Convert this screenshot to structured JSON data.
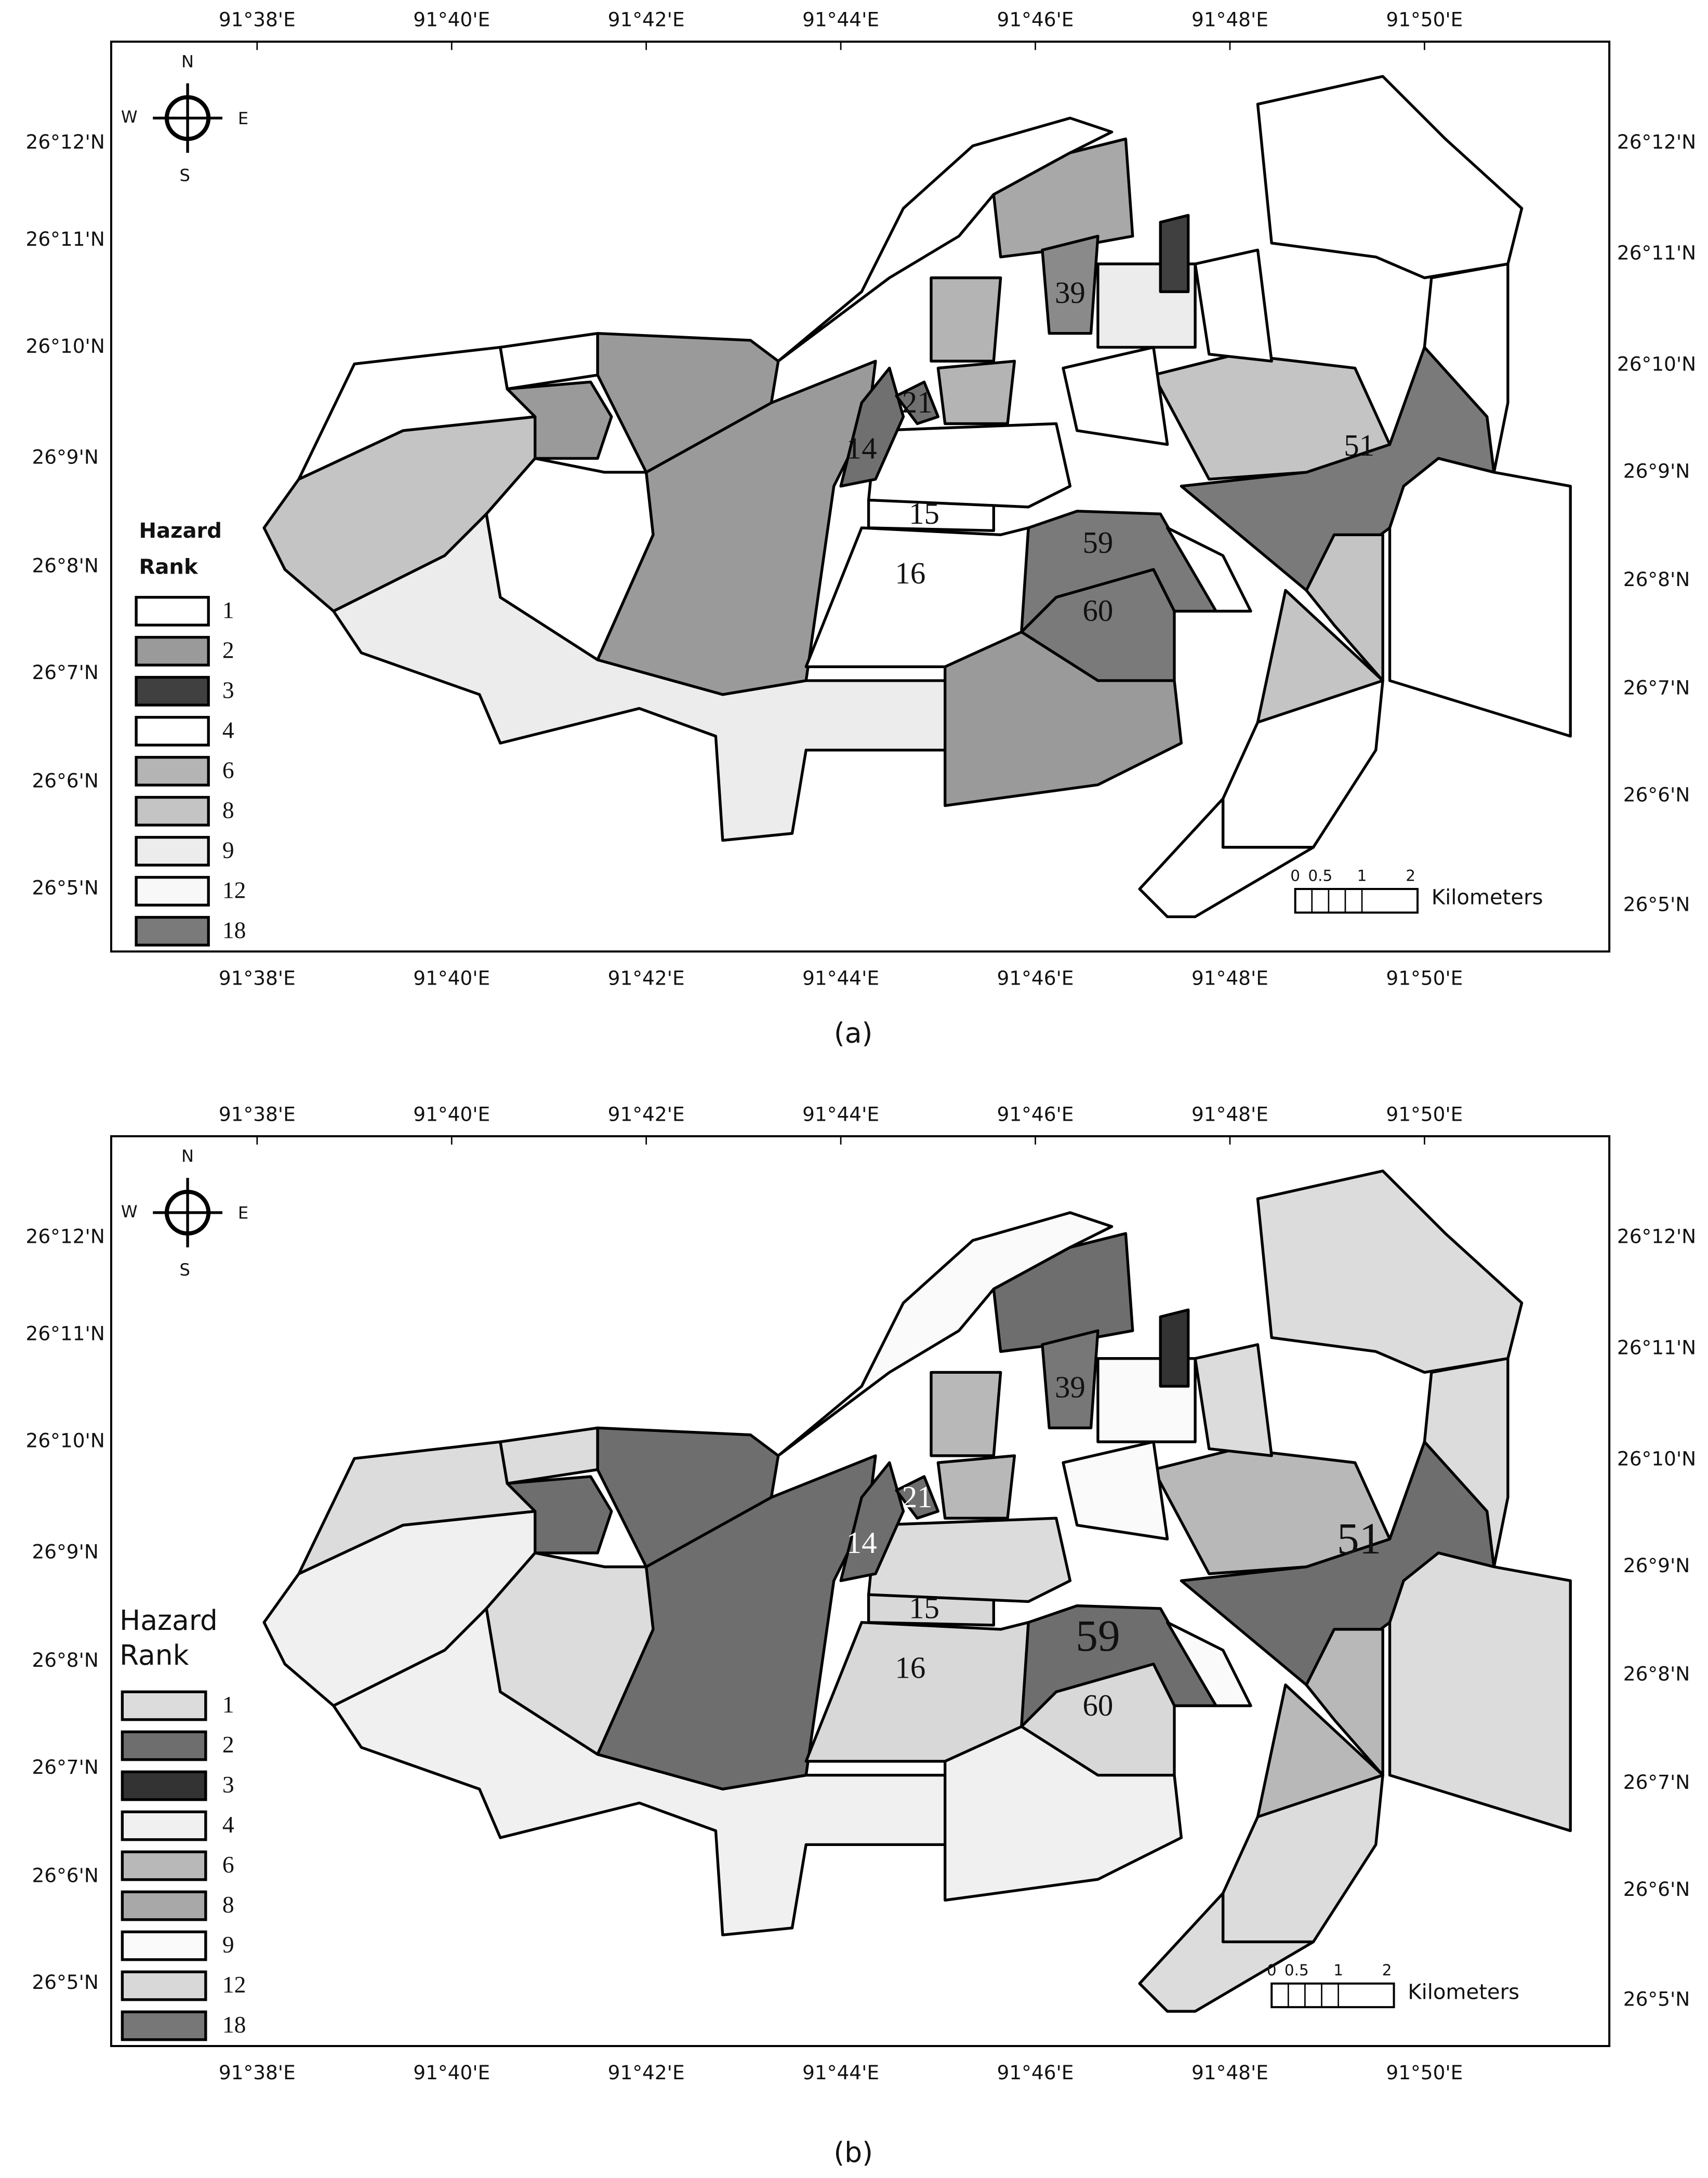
{
  "panels": [
    {
      "caption": "(a)",
      "lon_labels": [
        "91°38'E",
        "91°40'E",
        "91°42'E",
        "91°44'E",
        "91°46'E",
        "91°48'E",
        "91°50'E"
      ],
      "lat_labels": [
        "26°12'N",
        "26°11'N",
        "26°10'N",
        "26°9'N",
        "26°8'N",
        "26°7'N",
        "26°6'N",
        "26°5'N"
      ],
      "compass": {
        "n": "N",
        "s": "S",
        "e": "E",
        "w": "W"
      },
      "legend": {
        "title": [
          "Hazard",
          "Rank"
        ],
        "items": [
          {
            "label": "1",
            "color": "#ffffff"
          },
          {
            "label": "2",
            "color": "#9a9a9a"
          },
          {
            "label": "3",
            "color": "#404040"
          },
          {
            "label": "4",
            "color": "#ffffff"
          },
          {
            "label": "6",
            "color": "#b4b4b4"
          },
          {
            "label": "8",
            "color": "#c4c4c4"
          },
          {
            "label": "9",
            "color": "#ececec"
          },
          {
            "label": "12",
            "color": "#f8f8f8"
          },
          {
            "label": "18",
            "color": "#7a7a7a"
          }
        ]
      },
      "region_labels": [
        "39",
        "21",
        "14",
        "15",
        "16",
        "59",
        "60",
        "51"
      ],
      "scale": {
        "ticks": [
          "0",
          "0.5",
          "1",
          "2"
        ],
        "unit": "Kilometers"
      }
    },
    {
      "caption": "(b)",
      "lon_labels": [
        "91°38'E",
        "91°40'E",
        "91°42'E",
        "91°44'E",
        "91°46'E",
        "91°48'E",
        "91°50'E"
      ],
      "lat_labels": [
        "26°12'N",
        "26°11'N",
        "26°10'N",
        "26°9'N",
        "26°8'N",
        "26°7'N",
        "26°6'N",
        "26°5'N"
      ],
      "compass": {
        "n": "N",
        "s": "S",
        "e": "E",
        "w": "W"
      },
      "legend": {
        "title": [
          "Hazard",
          "Rank"
        ],
        "items": [
          {
            "label": "1",
            "color": "#dcdcdc"
          },
          {
            "label": "2",
            "color": "#6e6e6e"
          },
          {
            "label": "3",
            "color": "#333333"
          },
          {
            "label": "4",
            "color": "#f0f0f0"
          },
          {
            "label": "6",
            "color": "#b8b8b8"
          },
          {
            "label": "8",
            "color": "#a8a8a8"
          },
          {
            "label": "9",
            "color": "#fafafa"
          },
          {
            "label": "12",
            "color": "#d8d8d8"
          },
          {
            "label": "18",
            "color": "#777777"
          }
        ]
      },
      "region_labels": [
        "39",
        "21",
        "14",
        "15",
        "16",
        "59",
        "60",
        "51"
      ],
      "scale": {
        "ticks": [
          "0",
          "0.5",
          "1",
          "2"
        ],
        "unit": "Kilometers"
      }
    }
  ]
}
